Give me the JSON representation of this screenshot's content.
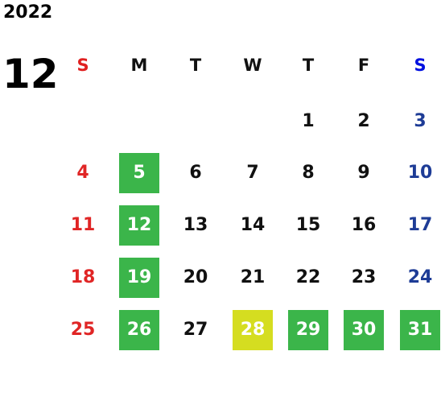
{
  "year": "2022",
  "month": "12",
  "weekdays": [
    "S",
    "M",
    "T",
    "W",
    "T",
    "F",
    "S"
  ],
  "weeks": [
    [
      null,
      null,
      null,
      null,
      {
        "day": "1"
      },
      {
        "day": "2"
      },
      {
        "day": "3"
      }
    ],
    [
      {
        "day": "4"
      },
      {
        "day": "5",
        "bg": "#3bb54a"
      },
      {
        "day": "6"
      },
      {
        "day": "7"
      },
      {
        "day": "8"
      },
      {
        "day": "9"
      },
      {
        "day": "10"
      }
    ],
    [
      {
        "day": "11"
      },
      {
        "day": "12",
        "bg": "#3bb54a"
      },
      {
        "day": "13"
      },
      {
        "day": "14"
      },
      {
        "day": "15"
      },
      {
        "day": "16"
      },
      {
        "day": "17"
      }
    ],
    [
      {
        "day": "18"
      },
      {
        "day": "19",
        "bg": "#3bb54a"
      },
      {
        "day": "20"
      },
      {
        "day": "21"
      },
      {
        "day": "22"
      },
      {
        "day": "23"
      },
      {
        "day": "24"
      }
    ],
    [
      {
        "day": "25"
      },
      {
        "day": "26",
        "bg": "#3bb54a"
      },
      {
        "day": "27"
      },
      {
        "day": "28",
        "bg": "#d5dd20"
      },
      {
        "day": "29",
        "bg": "#3bb54a"
      },
      {
        "day": "30",
        "bg": "#3bb54a"
      },
      {
        "day": "31",
        "bg": "#3bb54a"
      }
    ]
  ]
}
